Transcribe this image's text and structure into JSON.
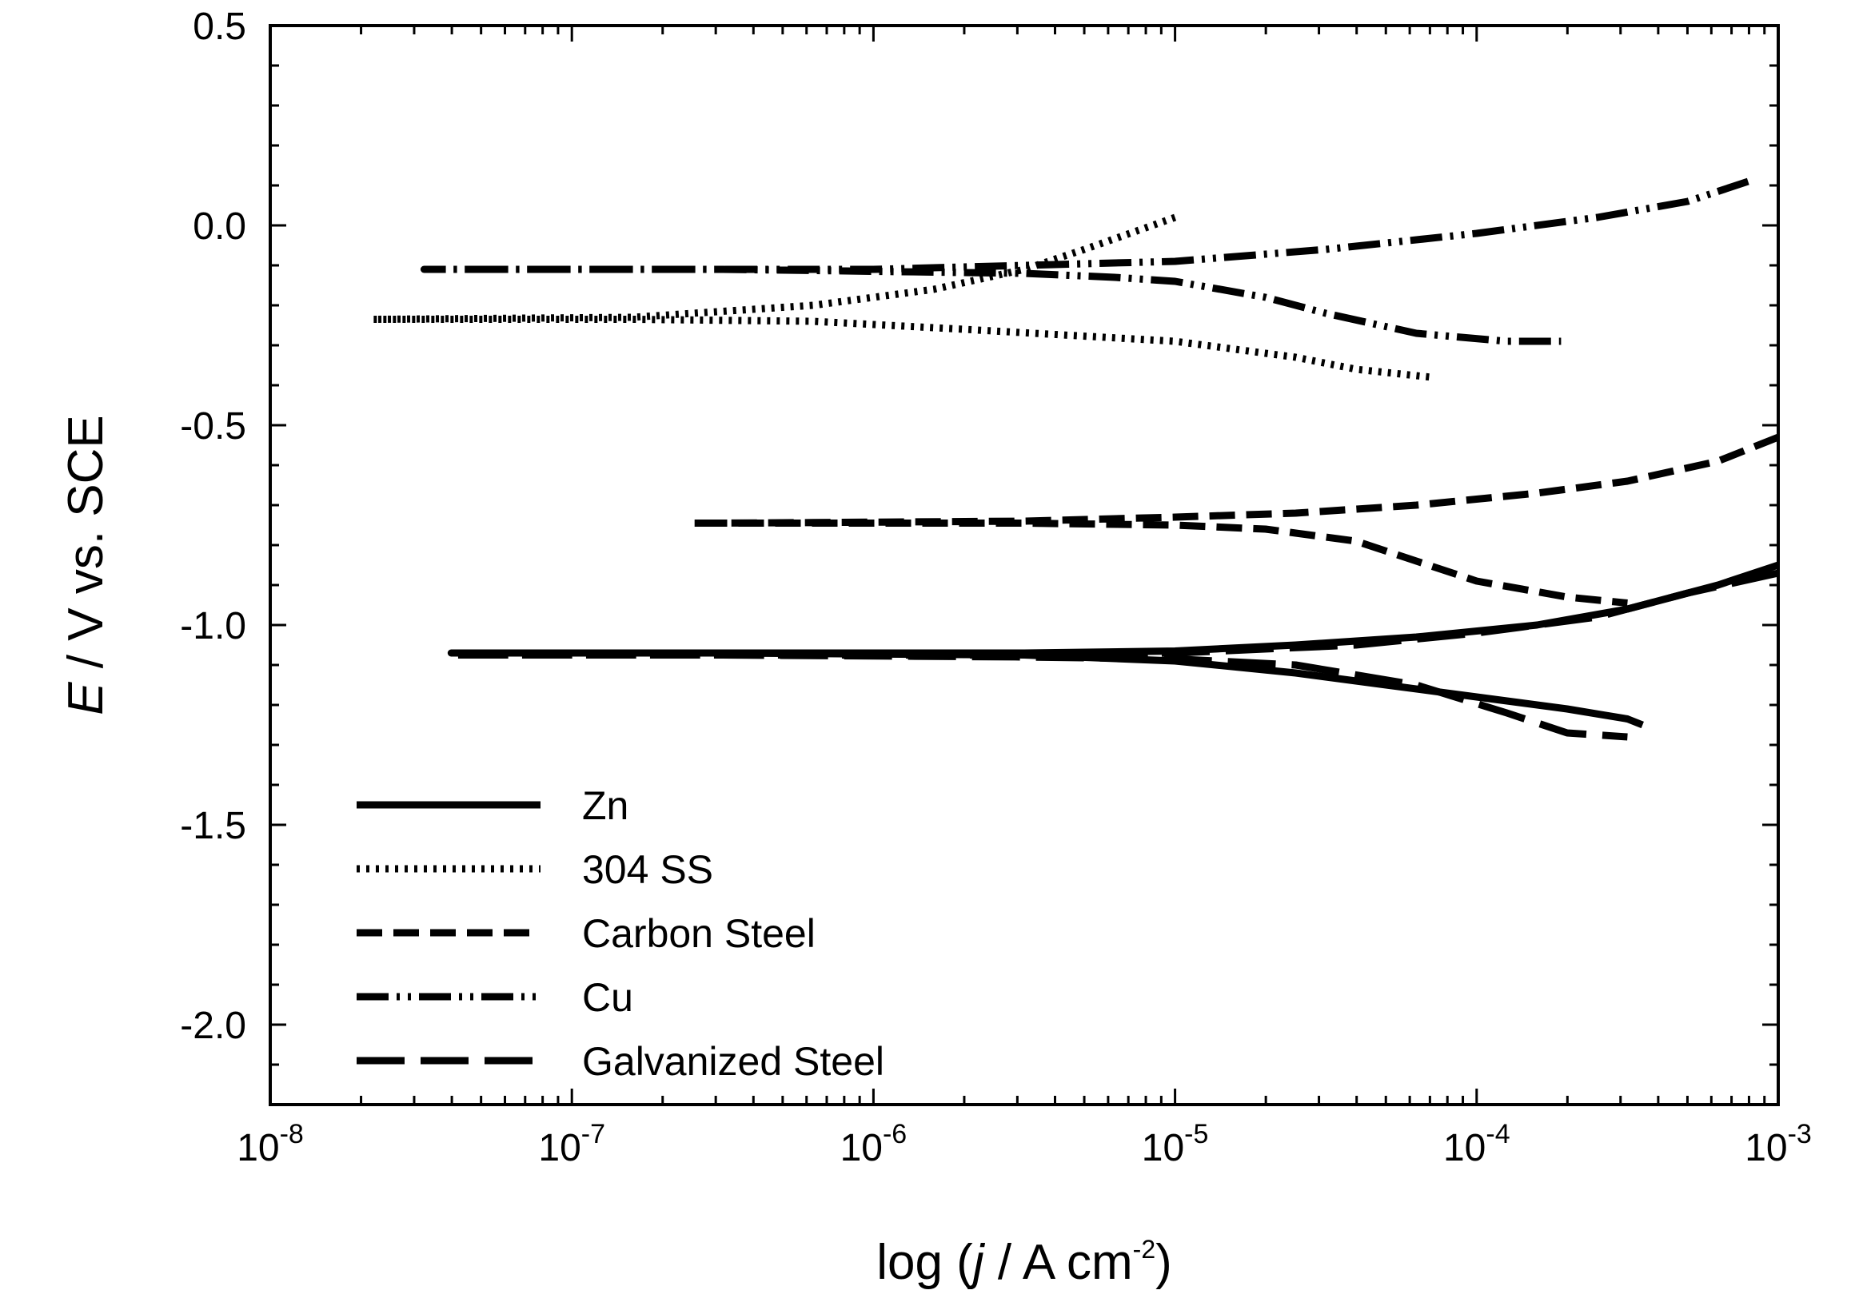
{
  "chart_data": {
    "type": "line",
    "title": "",
    "xlabel": {
      "prefix": "log (",
      "italic": "j",
      "middle": " / A cm",
      "sup": "-2",
      "suffix": ")"
    },
    "ylabel": {
      "italic": "E",
      "rest": " / V vs. SCE"
    },
    "x_scale": "log",
    "xlim_log10": [
      -8,
      -3
    ],
    "ylim": [
      -2.2,
      0.5
    ],
    "x_ticks": [
      {
        "base": "10",
        "exp": "-8"
      },
      {
        "base": "10",
        "exp": "-7"
      },
      {
        "base": "10",
        "exp": "-6"
      },
      {
        "base": "10",
        "exp": "-5"
      },
      {
        "base": "10",
        "exp": "-4"
      },
      {
        "base": "10",
        "exp": "-3"
      }
    ],
    "y_ticks": [
      {
        "value": 0.5,
        "label": "0.5"
      },
      {
        "value": 0.0,
        "label": "0.0"
      },
      {
        "value": -0.5,
        "label": "-0.5"
      },
      {
        "value": -1.0,
        "label": "-1.0"
      },
      {
        "value": -1.5,
        "label": "-1.5"
      },
      {
        "value": -2.0,
        "label": "-2.0"
      }
    ],
    "legend_position": "bottom-left",
    "series": [
      {
        "name": "Zn",
        "dash": "solid",
        "points": [
          [
            -3.0,
            -0.85
          ],
          [
            -3.2,
            -0.9
          ],
          [
            -3.5,
            -0.96
          ],
          [
            -3.8,
            -1.0
          ],
          [
            -4.2,
            -1.03
          ],
          [
            -4.6,
            -1.05
          ],
          [
            -5.0,
            -1.065
          ],
          [
            -5.5,
            -1.07
          ],
          [
            -6.5,
            -1.07
          ],
          [
            -7.4,
            -1.07
          ],
          [
            -6.5,
            -1.07
          ],
          [
            -5.5,
            -1.075
          ],
          [
            -5.0,
            -1.09
          ],
          [
            -4.6,
            -1.12
          ],
          [
            -4.3,
            -1.15
          ],
          [
            -4.0,
            -1.18
          ],
          [
            -3.7,
            -1.21
          ],
          [
            -3.5,
            -1.235
          ],
          [
            -3.45,
            -1.25
          ]
        ]
      },
      {
        "name": "304 SS",
        "dash": "dotted",
        "points": [
          [
            -5.0,
            0.02
          ],
          [
            -5.3,
            -0.06
          ],
          [
            -5.5,
            -0.11
          ],
          [
            -5.8,
            -0.16
          ],
          [
            -6.2,
            -0.2
          ],
          [
            -6.8,
            -0.23
          ],
          [
            -7.66,
            -0.235
          ],
          [
            -6.8,
            -0.235
          ],
          [
            -6.2,
            -0.24
          ],
          [
            -5.7,
            -0.26
          ],
          [
            -5.0,
            -0.29
          ],
          [
            -4.6,
            -0.33
          ],
          [
            -4.4,
            -0.36
          ],
          [
            -4.15,
            -0.38
          ]
        ]
      },
      {
        "name": "Carbon Steel",
        "dash": "dashed",
        "points": [
          [
            -3.0,
            -0.53
          ],
          [
            -3.2,
            -0.59
          ],
          [
            -3.5,
            -0.64
          ],
          [
            -3.8,
            -0.67
          ],
          [
            -4.2,
            -0.7
          ],
          [
            -4.6,
            -0.72
          ],
          [
            -5.0,
            -0.73
          ],
          [
            -5.5,
            -0.74
          ],
          [
            -6.5,
            -0.745
          ],
          [
            -6.6,
            -0.745
          ],
          [
            -5.5,
            -0.745
          ],
          [
            -5.0,
            -0.75
          ],
          [
            -4.7,
            -0.76
          ],
          [
            -4.4,
            -0.79
          ],
          [
            -4.2,
            -0.84
          ],
          [
            -4.0,
            -0.89
          ],
          [
            -3.7,
            -0.93
          ],
          [
            -3.5,
            -0.945
          ]
        ]
      },
      {
        "name": "Cu",
        "dash": "dash-dot-dot",
        "points": [
          [
            -3.1,
            0.11
          ],
          [
            -3.3,
            0.06
          ],
          [
            -3.6,
            0.02
          ],
          [
            -4.0,
            -0.02
          ],
          [
            -4.5,
            -0.06
          ],
          [
            -5.0,
            -0.09
          ],
          [
            -5.5,
            -0.1
          ],
          [
            -6.0,
            -0.11
          ],
          [
            -6.5,
            -0.11
          ],
          [
            -7.49,
            -0.11
          ],
          [
            -6.5,
            -0.11
          ],
          [
            -5.5,
            -0.12
          ],
          [
            -5.2,
            -0.13
          ],
          [
            -5.0,
            -0.14
          ],
          [
            -4.7,
            -0.18
          ],
          [
            -4.5,
            -0.22
          ],
          [
            -4.2,
            -0.27
          ],
          [
            -3.9,
            -0.29
          ],
          [
            -3.72,
            -0.29
          ]
        ]
      },
      {
        "name": "Galvanized Steel",
        "dash": "long-dashed",
        "points": [
          [
            -3.0,
            -0.87
          ],
          [
            -3.3,
            -0.92
          ],
          [
            -3.6,
            -0.98
          ],
          [
            -4.0,
            -1.02
          ],
          [
            -4.4,
            -1.05
          ],
          [
            -5.0,
            -1.07
          ],
          [
            -5.5,
            -1.075
          ],
          [
            -6.5,
            -1.075
          ],
          [
            -7.4,
            -1.075
          ],
          [
            -6.5,
            -1.075
          ],
          [
            -5.5,
            -1.08
          ],
          [
            -5.0,
            -1.085
          ],
          [
            -4.6,
            -1.1
          ],
          [
            -4.2,
            -1.15
          ],
          [
            -3.9,
            -1.22
          ],
          [
            -3.7,
            -1.27
          ],
          [
            -3.5,
            -1.28
          ]
        ]
      }
    ]
  }
}
